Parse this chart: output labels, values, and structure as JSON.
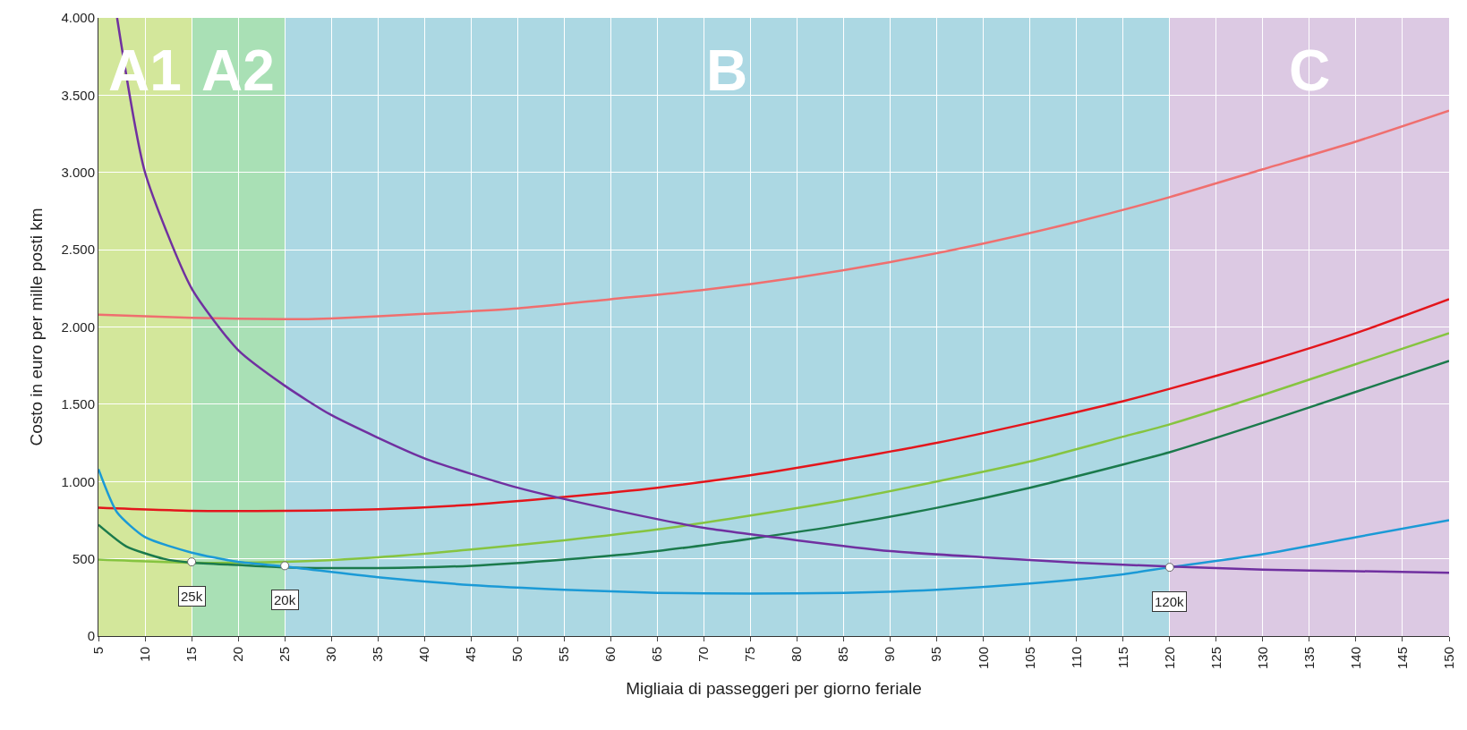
{
  "chart_data": {
    "type": "line",
    "xlabel": "Migliaia di passeggeri per giorno feriale",
    "ylabel": "Costo in euro per mille posti km",
    "xlim": [
      5,
      150
    ],
    "xticks": [
      5,
      10,
      15,
      20,
      25,
      30,
      35,
      40,
      45,
      50,
      55,
      60,
      65,
      70,
      75,
      80,
      85,
      90,
      95,
      100,
      105,
      110,
      115,
      120,
      125,
      130,
      135,
      140,
      145,
      150
    ],
    "ylim": [
      0,
      4000
    ],
    "yticks": [
      0,
      {
        "value": 500,
        "label": "500"
      },
      {
        "value": 1000,
        "label": "1.000"
      },
      {
        "value": 1500,
        "label": "1.500"
      },
      {
        "value": 2000,
        "label": "2.000"
      },
      {
        "value": 2500,
        "label": "2.500"
      },
      {
        "value": 3000,
        "label": "3.000"
      },
      {
        "value": 3500,
        "label": "3.500"
      },
      {
        "value": 4000,
        "label": "4.000"
      }
    ],
    "grid": true,
    "bands": [
      {
        "axis": "x",
        "from": 5,
        "to": 15,
        "label": "A1",
        "color": "#d3e79b"
      },
      {
        "axis": "x",
        "from": 15,
        "to": 25,
        "label": "A2",
        "color": "#a9e0b5"
      },
      {
        "axis": "x",
        "from": 25,
        "to": 120,
        "label": "B",
        "color": "#acd8e3"
      },
      {
        "axis": "x",
        "from": 120,
        "to": 150,
        "label": "C",
        "color": "#dcc9e3"
      }
    ],
    "series": [
      {
        "color": "#ef6f6f",
        "x": [
          5,
          15,
          25,
          30,
          40,
          50,
          60,
          70,
          80,
          90,
          100,
          110,
          120,
          130,
          140,
          150
        ],
        "values": [
          2080,
          2060,
          2050,
          2055,
          2085,
          2120,
          2180,
          2240,
          2320,
          2420,
          2540,
          2680,
          2840,
          3020,
          3200,
          3400
        ]
      },
      {
        "color": "#e3161c",
        "x": [
          5,
          15,
          25,
          35,
          45,
          55,
          65,
          75,
          85,
          95,
          105,
          115,
          120,
          130,
          140,
          150
        ],
        "values": [
          830,
          810,
          810,
          820,
          850,
          900,
          960,
          1040,
          1140,
          1250,
          1380,
          1520,
          1600,
          1770,
          1960,
          2180
        ]
      },
      {
        "color": "#86c440",
        "x": [
          5,
          15,
          25,
          35,
          45,
          55,
          65,
          75,
          85,
          95,
          105,
          115,
          120,
          130,
          140,
          150
        ],
        "values": [
          495,
          475,
          480,
          510,
          560,
          620,
          690,
          780,
          880,
          1000,
          1130,
          1290,
          1370,
          1560,
          1760,
          1960
        ]
      },
      {
        "color": "#1b7a4c",
        "x": [
          5,
          8,
          12,
          15,
          20,
          25,
          35,
          45,
          55,
          65,
          75,
          85,
          95,
          105,
          115,
          120,
          130,
          140,
          150
        ],
        "values": [
          720,
          580,
          500,
          475,
          460,
          445,
          440,
          455,
          495,
          550,
          630,
          720,
          830,
          960,
          1110,
          1190,
          1380,
          1580,
          1780
        ]
      },
      {
        "color": "#1b9ad6",
        "x": [
          5,
          7,
          10,
          15,
          20,
          25,
          35,
          45,
          55,
          65,
          75,
          85,
          95,
          105,
          115,
          120,
          130,
          140,
          150
        ],
        "values": [
          1080,
          800,
          640,
          540,
          480,
          450,
          380,
          330,
          300,
          280,
          275,
          280,
          300,
          340,
          400,
          445,
          530,
          640,
          750
        ]
      },
      {
        "color": "#7030a0",
        "x": [
          7,
          10,
          15,
          20,
          25,
          30,
          40,
          50,
          60,
          70,
          80,
          90,
          100,
          110,
          120,
          130,
          140,
          150
        ],
        "values": [
          4000,
          3000,
          2250,
          1850,
          1620,
          1430,
          1150,
          960,
          820,
          700,
          620,
          550,
          510,
          475,
          450,
          430,
          420,
          410
        ]
      }
    ],
    "annotations": [
      {
        "text": "25k",
        "x": 15,
        "y": 480
      },
      {
        "text": "20k",
        "x": 25,
        "y": 455
      },
      {
        "text": "120k",
        "x": 120,
        "y": 445
      }
    ]
  }
}
